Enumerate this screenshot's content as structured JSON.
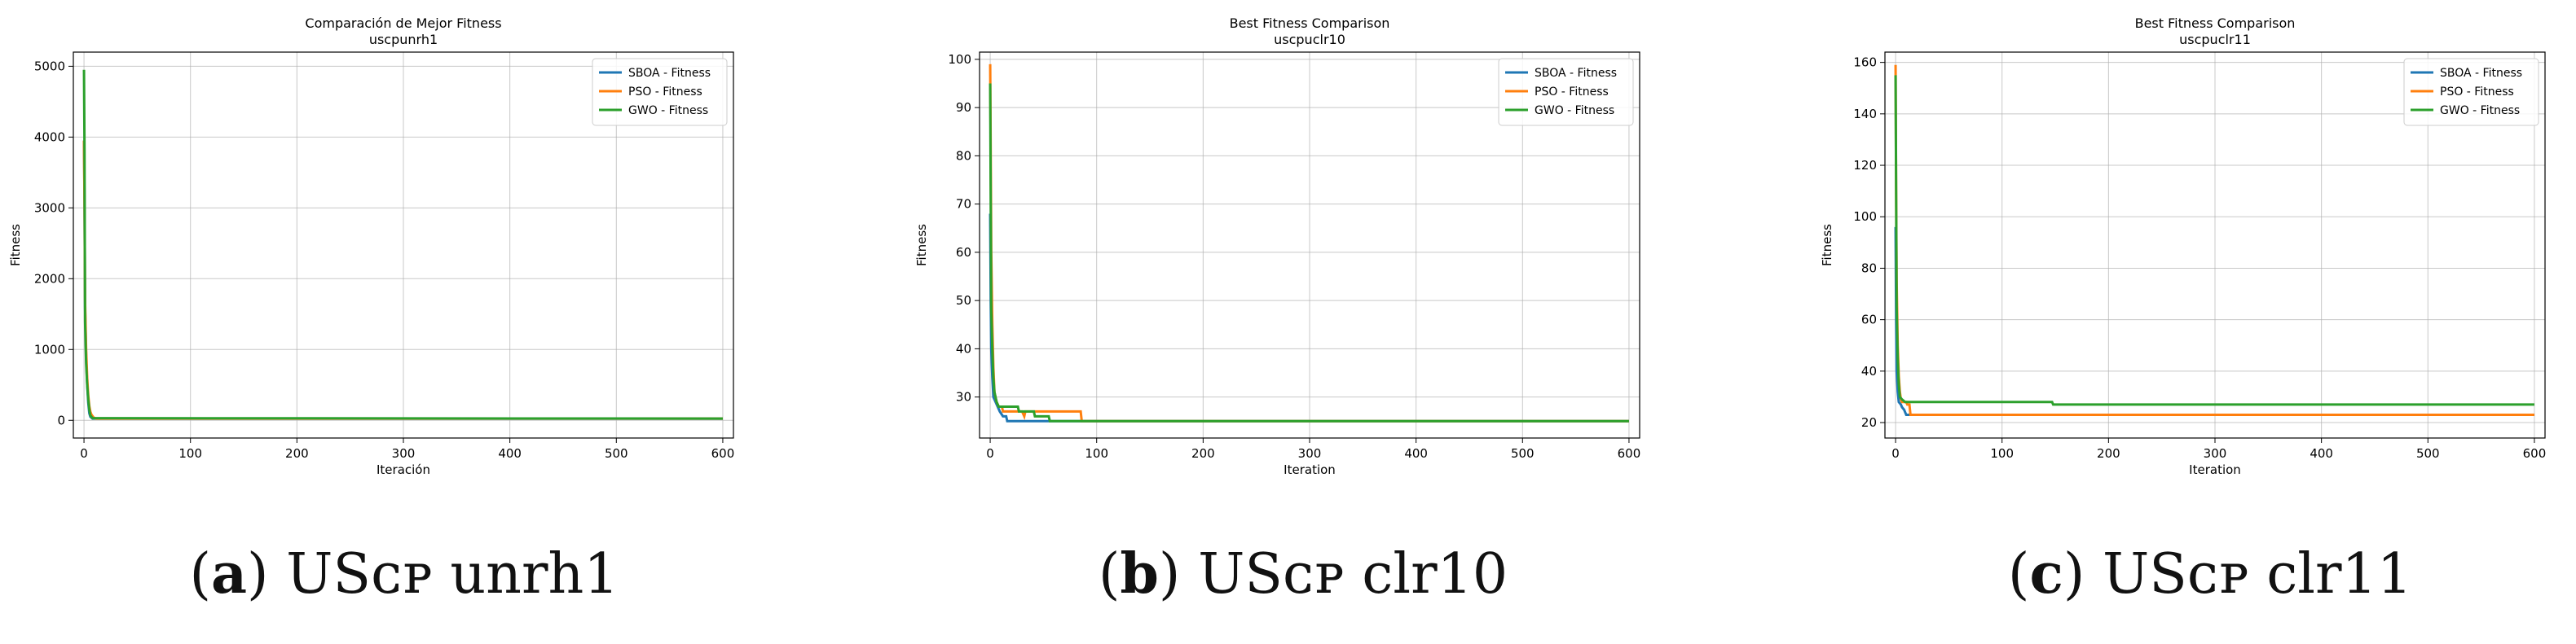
{
  "chart_data": [
    {
      "type": "line",
      "title": "Comparación de Mejor Fitness",
      "subtitle": "uscpunrh1",
      "xlabel": "Iteración",
      "ylabel": "Fitness",
      "xlim": [
        -10,
        610
      ],
      "ylim": [
        -250,
        5200
      ],
      "xticks": [
        0,
        100,
        200,
        300,
        400,
        500,
        600
      ],
      "yticks": [
        0,
        1000,
        2000,
        3000,
        4000,
        5000
      ],
      "grid": true,
      "legend_position": "top-right",
      "series": [
        {
          "name": "SBOA - Fitness",
          "color": "#1f77b4",
          "points": [
            [
              0,
              3950
            ],
            [
              0.5,
              3100
            ],
            [
              1,
              1600
            ],
            [
              2,
              900
            ],
            [
              3,
              500
            ],
            [
              4,
              250
            ],
            [
              5,
              100
            ],
            [
              6,
              50
            ],
            [
              8,
              25
            ],
            [
              600,
              25
            ]
          ]
        },
        {
          "name": "PSO - Fitness",
          "color": "#ff7f0e",
          "points": [
            [
              0,
              3950
            ],
            [
              0.5,
              3000
            ],
            [
              1,
              1700
            ],
            [
              2,
              1000
            ],
            [
              3,
              600
            ],
            [
              4,
              350
            ],
            [
              5,
              200
            ],
            [
              6,
              120
            ],
            [
              7,
              80
            ],
            [
              9,
              40
            ],
            [
              11,
              25
            ],
            [
              600,
              25
            ]
          ]
        },
        {
          "name": "GWO - Fitness",
          "color": "#2ca02c",
          "points": [
            [
              0,
              4950
            ],
            [
              0.5,
              3800
            ],
            [
              1,
              1400
            ],
            [
              2,
              800
            ],
            [
              3,
              500
            ],
            [
              4,
              300
            ],
            [
              5,
              150
            ],
            [
              6,
              70
            ],
            [
              8,
              30
            ],
            [
              600,
              25
            ]
          ]
        }
      ]
    },
    {
      "type": "line",
      "title": "Best Fitness Comparison",
      "subtitle": "uscpuclr10",
      "xlabel": "Iteration",
      "ylabel": "Fitness",
      "xlim": [
        -10,
        610
      ],
      "ylim": [
        21.5,
        101.5
      ],
      "xticks": [
        0,
        100,
        200,
        300,
        400,
        500,
        600
      ],
      "yticks": [
        30,
        40,
        50,
        60,
        70,
        80,
        90,
        100
      ],
      "grid": true,
      "legend_position": "top-right",
      "series": [
        {
          "name": "SBOA - Fitness",
          "color": "#1f77b4",
          "points": [
            [
              0,
              68
            ],
            [
              0.5,
              50
            ],
            [
              1,
              40
            ],
            [
              2,
              34
            ],
            [
              3,
              30
            ],
            [
              5,
              29
            ],
            [
              7,
              28
            ],
            [
              9,
              27
            ],
            [
              12,
              26
            ],
            [
              15,
              26
            ],
            [
              16,
              25
            ],
            [
              600,
              25
            ]
          ]
        },
        {
          "name": "PSO - Fitness",
          "color": "#ff7f0e",
          "points": [
            [
              0,
              99
            ],
            [
              0.5,
              80
            ],
            [
              1,
              60
            ],
            [
              2,
              45
            ],
            [
              3,
              36
            ],
            [
              4,
              31
            ],
            [
              6,
              29
            ],
            [
              8,
              28
            ],
            [
              11,
              28
            ],
            [
              12,
              27
            ],
            [
              30,
              27
            ],
            [
              32,
              26
            ],
            [
              33,
              27
            ],
            [
              85,
              27
            ],
            [
              86,
              25
            ],
            [
              600,
              25
            ]
          ]
        },
        {
          "name": "GWO - Fitness",
          "color": "#2ca02c",
          "points": [
            [
              0,
              95
            ],
            [
              0.5,
              70
            ],
            [
              1,
              48
            ],
            [
              2,
              40
            ],
            [
              3,
              34
            ],
            [
              4,
              31
            ],
            [
              6,
              29
            ],
            [
              8,
              28
            ],
            [
              26,
              28
            ],
            [
              27,
              27
            ],
            [
              41,
              27
            ],
            [
              42,
              26
            ],
            [
              55,
              26
            ],
            [
              56,
              25
            ],
            [
              600,
              25
            ]
          ]
        }
      ]
    },
    {
      "type": "line",
      "title": "Best Fitness Comparison",
      "subtitle": "uscpuclr11",
      "xlabel": "Iteration",
      "ylabel": "Fitness",
      "xlim": [
        -10,
        610
      ],
      "ylim": [
        14,
        164
      ],
      "xticks": [
        0,
        100,
        200,
        300,
        400,
        500,
        600
      ],
      "yticks": [
        20,
        40,
        60,
        80,
        100,
        120,
        140,
        160
      ],
      "grid": true,
      "legend_position": "top-right",
      "series": [
        {
          "name": "SBOA - Fitness",
          "color": "#1f77b4",
          "points": [
            [
              0,
              96
            ],
            [
              0.5,
              60
            ],
            [
              1,
              40
            ],
            [
              2,
              32
            ],
            [
              3,
              28
            ],
            [
              5,
              27
            ],
            [
              6,
              26
            ],
            [
              8,
              25
            ],
            [
              9,
              24
            ],
            [
              10,
              23
            ],
            [
              600,
              23
            ]
          ]
        },
        {
          "name": "PSO - Fitness",
          "color": "#ff7f0e",
          "points": [
            [
              0,
              159
            ],
            [
              0.5,
              110
            ],
            [
              1,
              75
            ],
            [
              2,
              50
            ],
            [
              3,
              38
            ],
            [
              4,
              32
            ],
            [
              5,
              29
            ],
            [
              6,
              28
            ],
            [
              10,
              28
            ],
            [
              11,
              27
            ],
            [
              13,
              27
            ],
            [
              14,
              23
            ],
            [
              600,
              23
            ]
          ]
        },
        {
          "name": "GWO - Fitness",
          "color": "#2ca02c",
          "points": [
            [
              0,
              155
            ],
            [
              0.5,
              110
            ],
            [
              1,
              65
            ],
            [
              2,
              45
            ],
            [
              3,
              35
            ],
            [
              4,
              30
            ],
            [
              6,
              29
            ],
            [
              9,
              28
            ],
            [
              147,
              28
            ],
            [
              148,
              27
            ],
            [
              600,
              27
            ]
          ]
        }
      ]
    }
  ],
  "captions": [
    {
      "label": "a",
      "text": " USᴄᴘ unrh1"
    },
    {
      "label": "b",
      "text": " USᴄᴘ clr10"
    },
    {
      "label": "c",
      "text": " USᴄᴘ clr11"
    }
  ]
}
